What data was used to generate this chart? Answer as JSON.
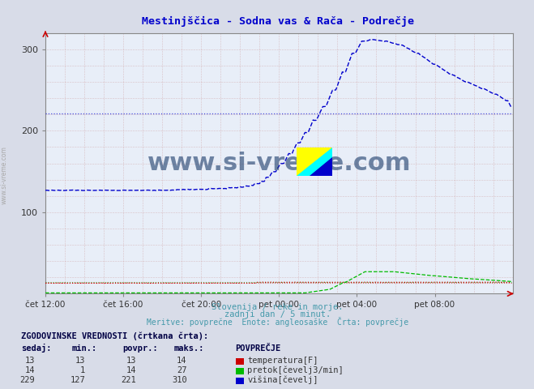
{
  "title": "Mestinjščica - Sodna vas & Rača - Podrečje",
  "title_color": "#0000cc",
  "bg_color": "#d8dce8",
  "plot_bg_color": "#e8eef8",
  "fig_width": 6.59,
  "fig_height": 4.8,
  "dpi": 100,
  "xlabel_ticks": [
    "čet 12:00",
    "čet 16:00",
    "čet 20:00",
    "pet 00:00",
    "pet 04:00",
    "pet 08:00"
  ],
  "xlim": [
    0,
    288
  ],
  "ylim": [
    0,
    320
  ],
  "yticks": [
    100,
    200,
    300
  ],
  "watermark": "www.si-vreme.com",
  "footer_line1": "Slovenija / reke in morje.",
  "footer_line2": "zadnji dan / 5 minut.",
  "footer_line3": "Meritve: povprečne  Enote: angleosaške  Črta: povprečje",
  "footer_color": "#4499aa",
  "table_title": "ZGODOVINSKE VREDNOSTI (črtkana črta):",
  "table_headers": [
    "sedaj:",
    "min.:",
    "povpr.:",
    "maks.:"
  ],
  "table_col_extra": "POVPREČJE",
  "table_data": [
    [
      13,
      13,
      13,
      14
    ],
    [
      14,
      1,
      14,
      27
    ],
    [
      229,
      127,
      221,
      310
    ]
  ],
  "legend_labels": [
    "temperatura[F]",
    "pretok[čevelj3/min]",
    "višina[čevelj]"
  ],
  "legend_colors": [
    "#cc0000",
    "#00bb00",
    "#0000cc"
  ],
  "temp_color": "#cc0000",
  "flow_color": "#00bb00",
  "height_color": "#0000cc",
  "temp_avg": 13,
  "flow_avg": 14,
  "height_avg": 221,
  "n_points": 288
}
